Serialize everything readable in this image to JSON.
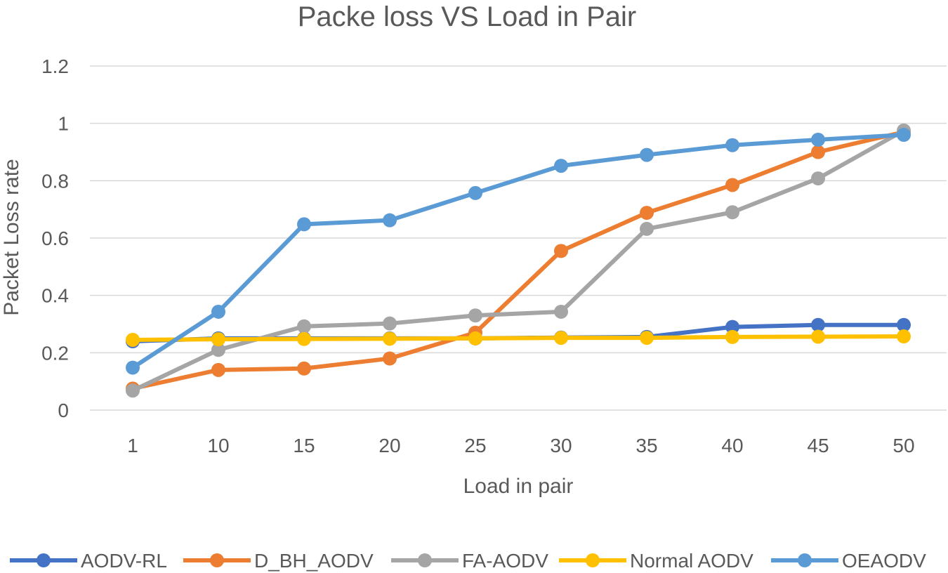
{
  "chart_data": {
    "type": "line",
    "title": "Packe loss VS Load in Pair",
    "xlabel": "Load in pair",
    "ylabel": "Packet Loss rate",
    "categories": [
      "1",
      "10",
      "15",
      "20",
      "25",
      "30",
      "35",
      "40",
      "45",
      "50"
    ],
    "ylim": [
      0,
      1.2
    ],
    "yticks": [
      0,
      0.2,
      0.4,
      0.6,
      0.8,
      1,
      1.2
    ],
    "ytick_labels": [
      "0",
      "0.2",
      "0.4",
      "0.6",
      "0.8",
      "1",
      "1.2"
    ],
    "grid": true,
    "legend_position": "bottom",
    "series": [
      {
        "name": "AODV-RL",
        "color": "#4472c4",
        "values": [
          0.24,
          0.25,
          0.25,
          0.25,
          0.25,
          0.253,
          0.255,
          0.29,
          0.297,
          0.297
        ]
      },
      {
        "name": "D_BH_AODV",
        "color": "#ed7d31",
        "values": [
          0.075,
          0.14,
          0.145,
          0.18,
          0.27,
          0.555,
          0.688,
          0.785,
          0.9,
          0.97
        ]
      },
      {
        "name": "FA-AODV",
        "color": "#a5a5a5",
        "values": [
          0.068,
          0.21,
          0.292,
          0.302,
          0.33,
          0.343,
          0.632,
          0.69,
          0.808,
          0.975
        ]
      },
      {
        "name": "Normal AODV",
        "color": "#ffc000",
        "values": [
          0.245,
          0.247,
          0.248,
          0.249,
          0.25,
          0.252,
          0.252,
          0.255,
          0.256,
          0.257
        ]
      },
      {
        "name": "OEAODV",
        "color": "#5b9bd5",
        "values": [
          0.148,
          0.343,
          0.648,
          0.662,
          0.757,
          0.852,
          0.89,
          0.924,
          0.943,
          0.96
        ]
      }
    ]
  }
}
